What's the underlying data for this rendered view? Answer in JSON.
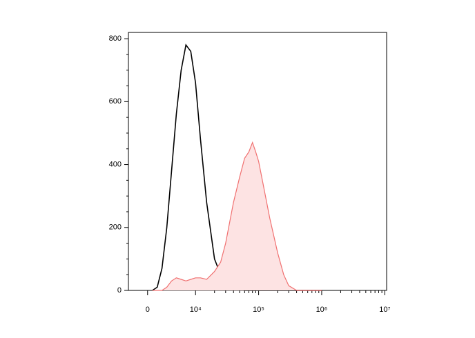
{
  "chart_data": {
    "type": "histogram-overlay",
    "x": [
      1000,
      2000,
      3000,
      4000,
      5000,
      6000,
      7000,
      8000,
      9000,
      10000,
      12000,
      15000,
      20000,
      25000,
      30000,
      40000,
      50000,
      60000,
      70000,
      80000,
      90000,
      100000,
      120000,
      150000,
      200000,
      250000,
      300000,
      400000,
      500000,
      1000000
    ],
    "series": [
      {
        "color": "#000000",
        "fill": "none",
        "values": [
          0,
          10,
          70,
          200,
          380,
          560,
          700,
          780,
          760,
          660,
          480,
          280,
          100,
          50,
          30,
          8,
          2,
          0,
          0,
          0,
          0,
          0,
          0,
          0,
          0,
          0,
          0,
          0,
          0,
          0
        ]
      },
      {
        "color": "#f07070",
        "fill": "#fde3e3",
        "values": [
          0,
          0,
          0,
          10,
          30,
          40,
          35,
          30,
          35,
          40,
          40,
          35,
          60,
          90,
          150,
          280,
          360,
          420,
          440,
          470,
          440,
          410,
          330,
          230,
          120,
          50,
          15,
          0,
          0,
          0
        ]
      }
    ],
    "xscale": "biexponential",
    "xlim": [
      -4000,
      10700000
    ],
    "xticks": [
      0,
      {
        "value": 10000,
        "label": "10⁴"
      },
      {
        "value": 100000,
        "label": "10⁵"
      },
      {
        "value": 1000000,
        "label": "10⁶"
      },
      {
        "value": 10000000,
        "label": "10⁷"
      }
    ],
    "ylim": [
      0,
      820
    ],
    "yticks": [
      0,
      200,
      400,
      600,
      800
    ]
  }
}
